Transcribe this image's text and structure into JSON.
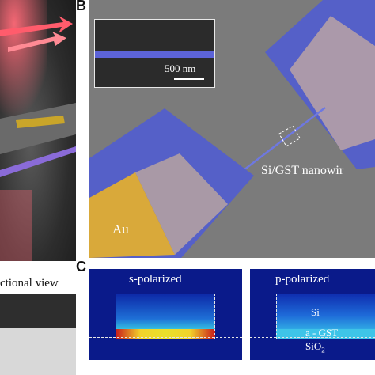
{
  "panel_a": {
    "cross_section_label": "ctional view"
  },
  "panel_b": {
    "letter": "B",
    "inset_scale": "500 nm",
    "au_label": "Au",
    "nanowire_label": "Si/GST nanowir"
  },
  "panel_c": {
    "letter": "C",
    "modes": [
      {
        "title": "s-polarized"
      },
      {
        "title": "p-polarized",
        "si": "Si",
        "gst": "a - GST",
        "sio2": "SiO",
        "sio2_sub": "2"
      }
    ]
  },
  "colors": {
    "pad_blue": "#5560c8",
    "gold": "#d4a62a",
    "sem_gray": "#7b7b7b",
    "field_dark": "#0a1a8a"
  }
}
